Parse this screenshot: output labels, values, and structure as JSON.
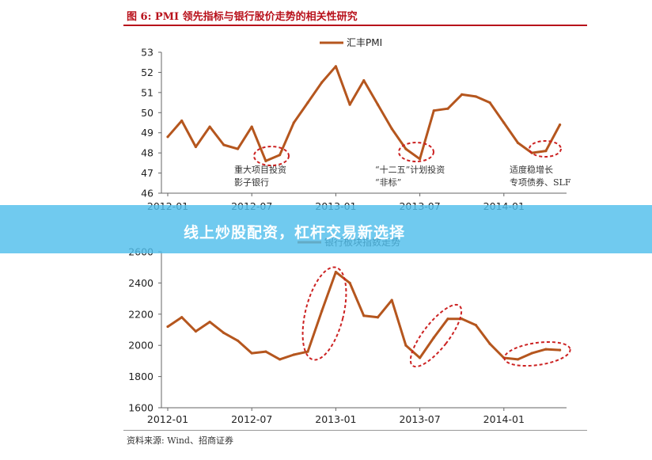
{
  "figure": {
    "title": "图 6: PMI 领先指标与银行股价走势的相关性研究",
    "source": "资料来源: Wind、招商证券"
  },
  "banner": {
    "text": "线上炒股配资，杠杆交易新选择"
  },
  "colors": {
    "line": "#b5561e",
    "annotation": "#cc2222",
    "title": "#b8111b",
    "banner": "#50beeb"
  },
  "chart_data": [
    {
      "type": "line",
      "title": "",
      "series": [
        {
          "name": "汇丰PMI",
          "x": [
            "2012-01",
            "2012-02",
            "2012-03",
            "2012-04",
            "2012-05",
            "2012-06",
            "2012-07",
            "2012-08",
            "2012-09",
            "2012-10",
            "2012-11",
            "2012-12",
            "2013-01",
            "2013-02",
            "2013-03",
            "2013-04",
            "2013-05",
            "2013-06",
            "2013-07",
            "2013-08",
            "2013-09",
            "2013-10",
            "2013-11",
            "2013-12",
            "2014-01",
            "2014-02",
            "2014-03",
            "2014-04",
            "2014-05",
            "2014-06"
          ],
          "values": [
            48.8,
            49.6,
            48.3,
            49.3,
            48.4,
            48.2,
            49.3,
            47.6,
            47.9,
            49.5,
            50.5,
            51.5,
            52.3,
            50.4,
            51.6,
            50.4,
            49.2,
            48.2,
            47.7,
            50.1,
            50.2,
            50.9,
            50.8,
            50.5,
            49.5,
            48.5,
            48.0,
            48.1,
            49.4,
            null
          ],
          "display_x_index": [
            0,
            1,
            2,
            3,
            4,
            5,
            6,
            7,
            8,
            9,
            10,
            11,
            12,
            13,
            14,
            15,
            16,
            17,
            18,
            19,
            20,
            21,
            22,
            23,
            24,
            25,
            26,
            27,
            28
          ]
        }
      ],
      "ylim": [
        46,
        53
      ],
      "yticks": [
        "46",
        "47",
        "48",
        "49",
        "50",
        "51",
        "52",
        "53"
      ],
      "xticks": [
        "2012-01",
        "2012-07",
        "2013-01",
        "2013-07",
        "2014-01"
      ],
      "legend": "top-center",
      "annotations": [
        {
          "lines": [
            "重大项目投资",
            "影子银行"
          ]
        },
        {
          "lines": [
            "“十二五”计划投资",
            "“非标”"
          ]
        },
        {
          "lines": [
            "适度稳增长",
            "专项债券、SLF"
          ]
        }
      ]
    },
    {
      "type": "line",
      "title": "",
      "series": [
        {
          "name": "银行板块指数走势",
          "values": [
            2120,
            2180,
            2090,
            2150,
            2080,
            2030,
            1950,
            1960,
            1910,
            1940,
            1960,
            2220,
            2470,
            2400,
            2190,
            2180,
            2290,
            2000,
            1920,
            2050,
            2170,
            2170,
            2130,
            2010,
            1920,
            1910,
            1950,
            1975,
            1970
          ]
        }
      ],
      "ylim": [
        1600,
        2600
      ],
      "yticks": [
        "1600",
        "1800",
        "2000",
        "2200",
        "2400",
        "2600"
      ],
      "xticks": [
        "2012-01",
        "2012-07",
        "2013-01",
        "2013-07",
        "2014-01"
      ],
      "legend": "top-center"
    }
  ]
}
